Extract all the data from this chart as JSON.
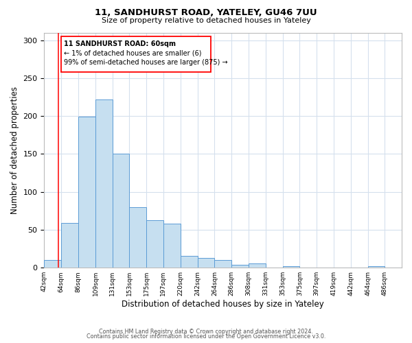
{
  "title": "11, SANDHURST ROAD, YATELEY, GU46 7UU",
  "subtitle": "Size of property relative to detached houses in Yateley",
  "xlabel": "Distribution of detached houses by size in Yateley",
  "ylabel": "Number of detached properties",
  "footer_lines": [
    "Contains HM Land Registry data © Crown copyright and database right 2024.",
    "Contains public sector information licensed under the Open Government Licence v3.0."
  ],
  "bar_left_edges": [
    42,
    64,
    86,
    109,
    131,
    153,
    175,
    197,
    220,
    242,
    264,
    286,
    308,
    331,
    353,
    375,
    397,
    419,
    442,
    464
  ],
  "bar_heights": [
    10,
    59,
    199,
    222,
    150,
    80,
    63,
    58,
    16,
    13,
    10,
    4,
    6,
    0,
    2,
    0,
    0,
    0,
    0,
    2
  ],
  "bar_widths": [
    22,
    22,
    23,
    22,
    22,
    22,
    22,
    23,
    22,
    22,
    22,
    22,
    23,
    22,
    22,
    22,
    22,
    23,
    22,
    22
  ],
  "tick_labels": [
    "42sqm",
    "64sqm",
    "86sqm",
    "109sqm",
    "131sqm",
    "153sqm",
    "175sqm",
    "197sqm",
    "220sqm",
    "242sqm",
    "264sqm",
    "286sqm",
    "308sqm",
    "331sqm",
    "353sqm",
    "375sqm",
    "397sqm",
    "419sqm",
    "442sqm",
    "464sqm",
    "486sqm"
  ],
  "tick_positions": [
    42,
    64,
    86,
    109,
    131,
    153,
    175,
    197,
    220,
    242,
    264,
    286,
    308,
    331,
    353,
    375,
    397,
    419,
    442,
    464,
    486
  ],
  "bar_color": "#c6dff0",
  "bar_edge_color": "#5b9bd5",
  "vline_x": 60,
  "annotation_lines": [
    "11 SANDHURST ROAD: 60sqm",
    "← 1% of detached houses are smaller (6)",
    "99% of semi-detached houses are larger (875) →"
  ],
  "xlim": [
    42,
    508
  ],
  "ylim": [
    0,
    310
  ],
  "yticks": [
    0,
    50,
    100,
    150,
    200,
    250,
    300
  ],
  "background_color": "#ffffff",
  "grid_color": "#d5e0ed"
}
